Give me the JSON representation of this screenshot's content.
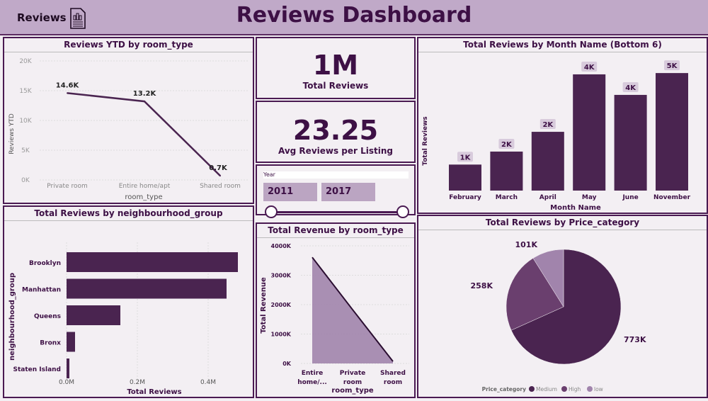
{
  "header": {
    "brand": "Reviews",
    "title": "Reviews Dashboard",
    "brand_icon": "report-icon"
  },
  "colors": {
    "dark": "#4a2450",
    "medium": "#6a3f6e",
    "light": "#a184ac",
    "header": "#c0a9c8"
  },
  "kpis": [
    {
      "value": "1M",
      "label": "Total Reviews"
    },
    {
      "value": "23.25",
      "label": "Avg Reviews per Listing"
    }
  ],
  "slicer": {
    "label": "Year",
    "from": "2011",
    "to": "2017"
  },
  "chart_data": [
    {
      "id": "ytd",
      "type": "line",
      "title": "Reviews YTD by room_type",
      "xlabel": "room_type",
      "ylabel": "Reviews YTD",
      "categories": [
        "Private room",
        "Entire home/apt",
        "Shared room"
      ],
      "values": [
        14.6,
        13.2,
        0.7
      ],
      "labels": [
        "14.6K",
        "13.2K",
        "0.7K"
      ],
      "ylim": [
        0,
        20
      ],
      "yticks": [
        "0K",
        "5K",
        "10K",
        "15K",
        "20K"
      ],
      "grid": true
    },
    {
      "id": "neigh",
      "type": "bar",
      "orientation": "horizontal",
      "title": "Total Reviews by neighbourhood_group",
      "xlabel": "Total Reviews",
      "ylabel": "neighbourhood_group",
      "categories": [
        "Brooklyn",
        "Manhattan",
        "Queens",
        "Bronx",
        "Staten Island"
      ],
      "values": [
        0.484,
        0.452,
        0.152,
        0.024,
        0.008
      ],
      "xlim": [
        0,
        0.5
      ],
      "xticks": [
        "0.0M",
        "0.2M",
        "0.4M"
      ],
      "grid": true
    },
    {
      "id": "month",
      "type": "bar",
      "title": "Total Reviews by Month Name (Bottom 6)",
      "xlabel": "Month Name",
      "ylabel": "Total Reviews",
      "categories": [
        "February",
        "March",
        "April",
        "May",
        "June",
        "November"
      ],
      "values": [
        1.0,
        1.5,
        2.26,
        4.47,
        3.68,
        4.52
      ],
      "labels": [
        "1K",
        "2K",
        "2K",
        "4K",
        "4K",
        "5K"
      ]
    },
    {
      "id": "rev",
      "type": "area",
      "title": "Total Revenue by room_type",
      "xlabel": "room_type",
      "ylabel": "Total Revenue",
      "categories": [
        [
          "Entire",
          "home/..."
        ],
        [
          "Private",
          "room"
        ],
        [
          "Shared",
          "room"
        ]
      ],
      "values": [
        3610,
        1830,
        70
      ],
      "ylim": [
        0,
        4000
      ],
      "yticks": [
        "0K",
        "1000K",
        "2000K",
        "3000K",
        "4000K"
      ],
      "grid": true
    },
    {
      "id": "pie",
      "type": "pie",
      "title": "Total Reviews by Price_category",
      "legend_title": "Price_category",
      "legend_position": "bottom",
      "categories": [
        "Medium",
        "High",
        "low"
      ],
      "values": [
        773,
        258,
        101
      ],
      "labels": [
        "773K",
        "258K",
        "101K"
      ]
    }
  ]
}
